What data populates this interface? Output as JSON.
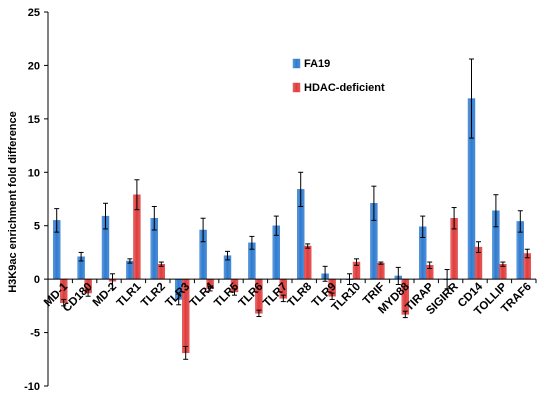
{
  "chart_data": {
    "type": "bar",
    "title": "",
    "xlabel": "",
    "ylabel": "H3K9ac enrichment fold difference",
    "ylim": [
      -10,
      25
    ],
    "yticks": [
      -10,
      -5,
      0,
      5,
      10,
      15,
      20,
      25
    ],
    "grid": false,
    "legend_position": "top-right",
    "categories": [
      "MD-1",
      "CD180",
      "MD-2",
      "TLR1",
      "TLR2",
      "TLR3",
      "TLR4",
      "TLR5",
      "TLR6",
      "TLR7",
      "TLR8",
      "TLR9",
      "TLR10",
      "TRIF",
      "MYD88",
      "TIRAP",
      "SIGIRR",
      "CD14",
      "TOLLIP",
      "TRAF6"
    ],
    "series": [
      {
        "name": "FA19",
        "color": "#2e7bd0",
        "values": [
          5.5,
          2.1,
          5.9,
          1.7,
          5.7,
          -1.9,
          4.6,
          2.2,
          3.4,
          5.0,
          8.4,
          0.5,
          0.0,
          7.1,
          0.3,
          4.9,
          0.0,
          16.9,
          6.4,
          5.4
        ],
        "errors": [
          1.1,
          0.4,
          1.2,
          0.2,
          1.1,
          0.5,
          1.1,
          0.4,
          0.6,
          0.9,
          1.6,
          0.7,
          0.5,
          1.6,
          0.8,
          1.0,
          0.9,
          3.7,
          1.5,
          1.0
        ]
      },
      {
        "name": "HDAC-deficient",
        "color": "#e03c3c",
        "values": [
          -2.2,
          -1.3,
          -0.2,
          7.9,
          1.4,
          -6.9,
          -0.9,
          -1.2,
          -3.2,
          -1.8,
          3.1,
          -1.6,
          1.6,
          1.5,
          -3.3,
          1.3,
          5.7,
          3.0,
          1.4,
          2.4
        ],
        "errors": [
          0.3,
          0.3,
          0.7,
          1.4,
          0.2,
          0.6,
          0.2,
          0.3,
          0.3,
          0.3,
          0.2,
          0.3,
          0.3,
          0.1,
          0.3,
          0.3,
          1.0,
          0.5,
          0.2,
          0.4
        ]
      }
    ]
  }
}
